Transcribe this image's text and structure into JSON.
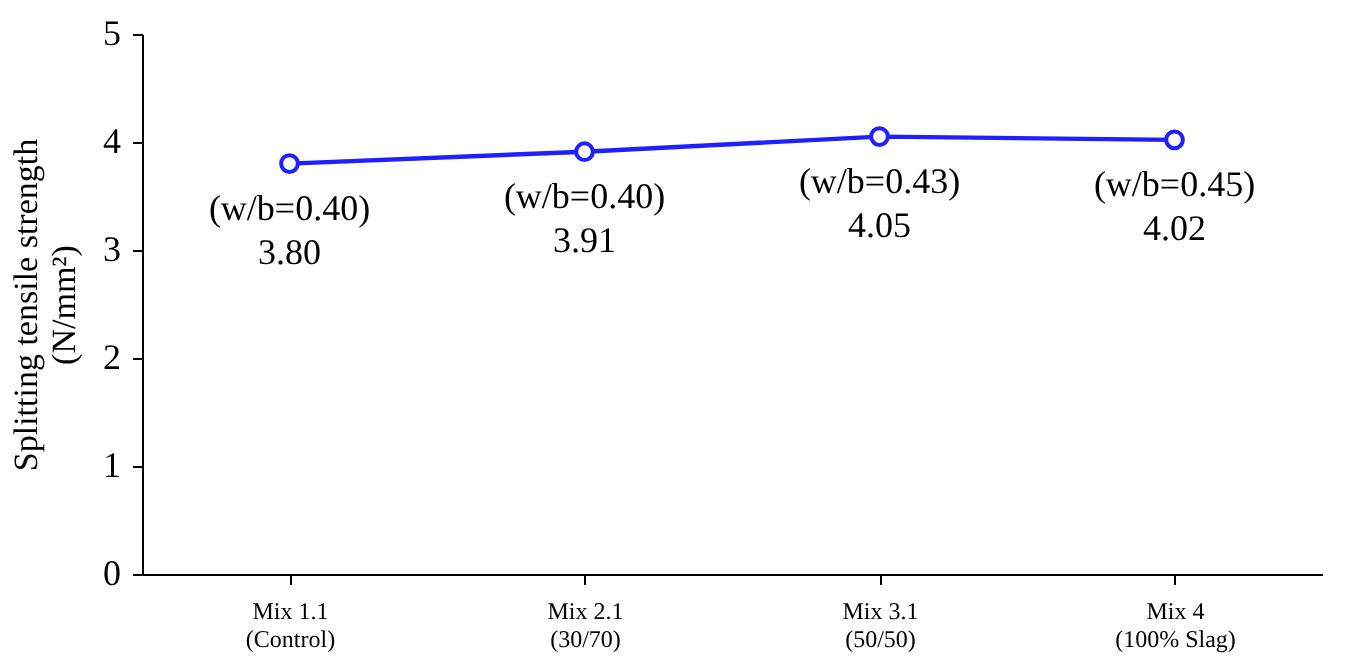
{
  "chart_data": {
    "type": "line",
    "ylabel": "Splitting tensile strength\n(N/mm²)",
    "categories": [
      "Mix 1.1\n(Control)",
      "Mix 2.1\n(30/70)",
      "Mix 3.1\n(50/50)",
      "Mix 4\n(100% Slag)"
    ],
    "series": [
      {
        "color": "#1f1fff",
        "values": [
          3.8,
          3.91,
          4.05,
          4.02
        ],
        "value_labels": [
          "(w/b=0.40)\n3.80",
          "(w/b=0.40)\n3.91",
          "(w/b=0.43)\n4.05",
          "(w/b=0.45)\n4.02"
        ]
      }
    ],
    "ylim": [
      0,
      5
    ],
    "yticks": [
      0,
      1,
      2,
      3,
      4,
      5
    ],
    "grid": false,
    "marker": "circle",
    "line_style": "solid"
  }
}
